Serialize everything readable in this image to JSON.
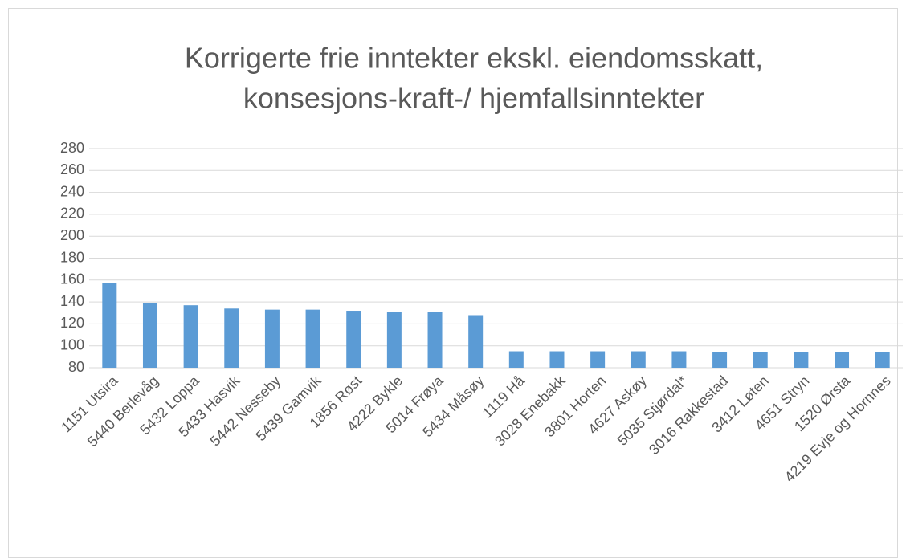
{
  "chart_data": {
    "type": "bar",
    "title": [
      "Korrigerte frie inntekter ekskl. eiendomsskatt,",
      "konsesjons-kraft-/ hjemfallsinntekter"
    ],
    "categories": [
      "1151 Utsira",
      "5440 Berlevåg",
      "5432 Loppa",
      "5433 Hasvik",
      "5442 Nesseby",
      "5439 Gamvik",
      "1856 Røst",
      "4222 Bykle",
      "5014 Frøya",
      "5434 Måsøy",
      "1119 Hå",
      "3028 Enebakk",
      "3801 Horten",
      "4627 Askøy",
      "5035 Stjørdal*",
      "3016 Rakkestad",
      "3412 Løten",
      "4651 Stryn",
      "1520 Ørsta",
      "4219 Evje og Hornnes"
    ],
    "values": [
      157,
      139,
      137,
      134,
      133,
      133,
      132,
      131,
      131,
      128,
      95,
      95,
      95,
      95,
      95,
      94,
      94,
      94,
      94,
      94
    ],
    "color": "#5b9bd5",
    "ylim": [
      80,
      280
    ],
    "yticks": [
      80,
      100,
      120,
      140,
      160,
      180,
      200,
      220,
      240,
      260,
      280
    ],
    "grid": true
  }
}
